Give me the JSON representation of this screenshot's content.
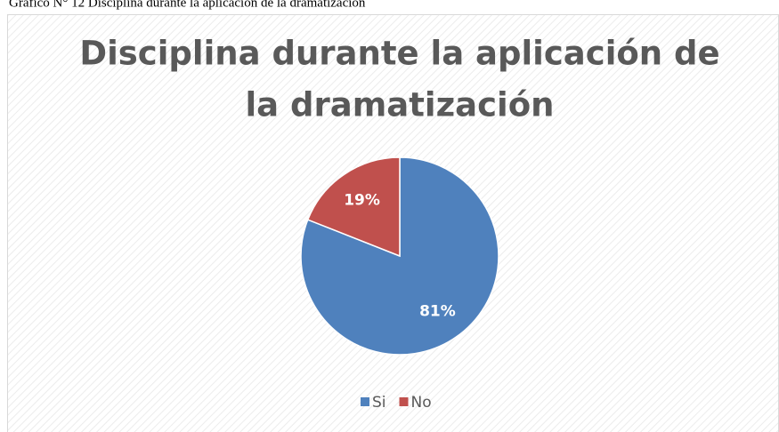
{
  "caption": "Gráfico N° 12 Disciplina durante la aplicación de la dramatización",
  "chart_data": {
    "type": "pie",
    "title": [
      "Disciplina durante la aplicación de",
      "la dramatización"
    ],
    "categories": [
      "Si",
      "No"
    ],
    "values": [
      81,
      19
    ],
    "value_labels": [
      "81%",
      "19%"
    ],
    "colors": [
      "#4f81bd",
      "#c0504d"
    ],
    "legend": "bottom"
  }
}
